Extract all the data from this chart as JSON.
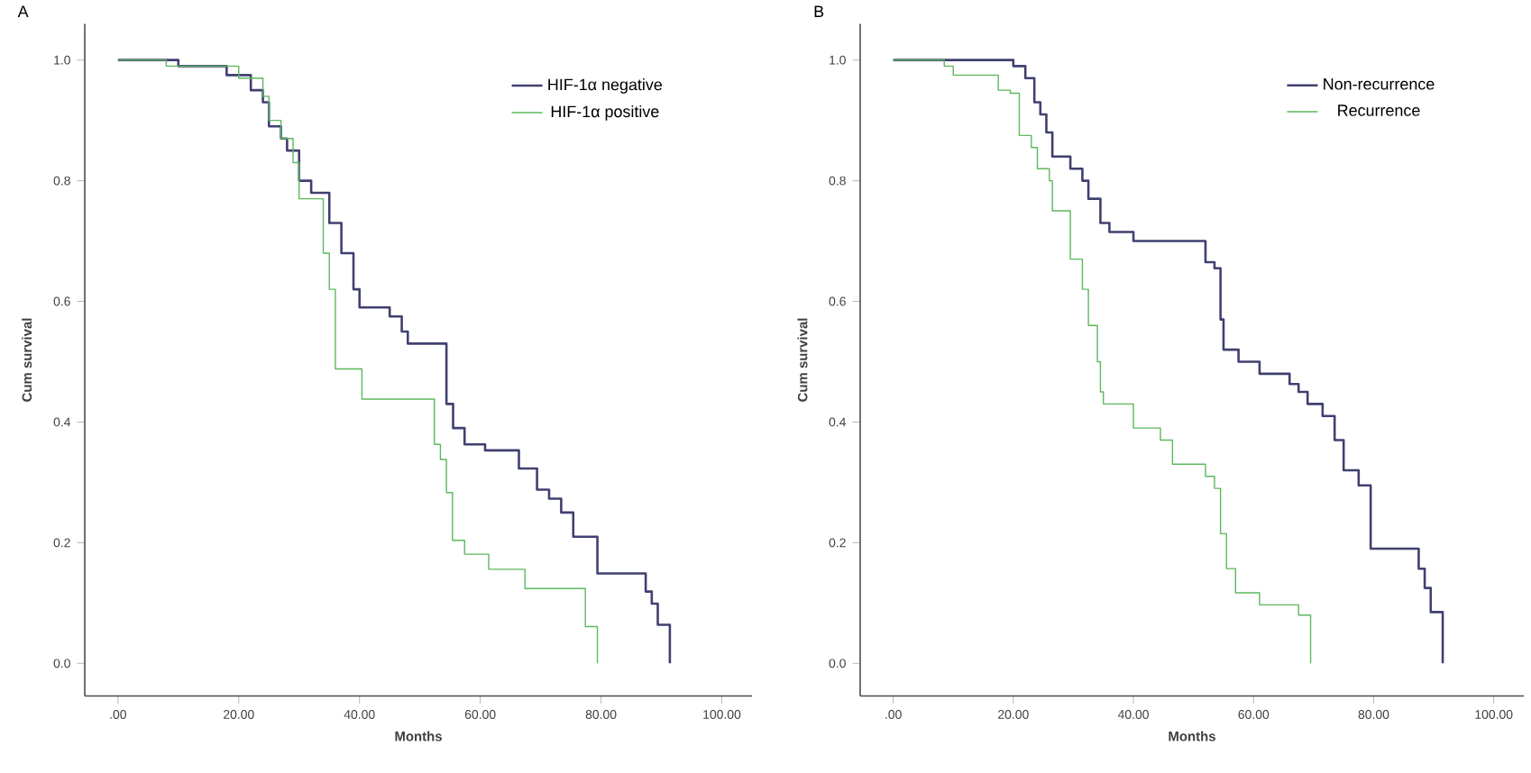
{
  "chart_data": [
    {
      "type": "step",
      "title": "A",
      "xlabel": "Months",
      "ylabel": "Cum survival",
      "legend": "top right",
      "xlim": [
        -5.5,
        105
      ],
      "ylim": [
        -0.054,
        1.06
      ],
      "xticks": [
        {
          "value": 0,
          "label": ".00"
        },
        {
          "value": 20,
          "label": "20.00"
        },
        {
          "value": 40,
          "label": "40.00"
        },
        {
          "value": 60,
          "label": "60.00"
        },
        {
          "value": 80,
          "label": "80.00"
        },
        {
          "value": 100,
          "label": "100.00"
        }
      ],
      "yticks": [
        {
          "value": 0,
          "label": "0.0"
        },
        {
          "value": 0.2,
          "label": "0.2"
        },
        {
          "value": 0.4,
          "label": "0.4"
        },
        {
          "value": 0.6,
          "label": "0.6"
        },
        {
          "value": 0.8,
          "label": "0.8"
        },
        {
          "value": 1,
          "label": "1.0"
        }
      ],
      "series": [
        {
          "name": "HIF-1α negative",
          "color": "#404070",
          "x": [
            0,
            10,
            18,
            22,
            24,
            25,
            27,
            28,
            30,
            32,
            35,
            37,
            39,
            40,
            45,
            47,
            48,
            54.4,
            55.5,
            57.4,
            60.8,
            66.4,
            69.4,
            71.4,
            73.4,
            75.4,
            79.4,
            87.4,
            88.4,
            89.4,
            91.4
          ],
          "values": [
            1,
            0.99,
            0.975,
            0.95,
            0.93,
            0.89,
            0.87,
            0.85,
            0.8,
            0.78,
            0.73,
            0.68,
            0.62,
            0.59,
            0.575,
            0.55,
            0.53,
            0.43,
            0.39,
            0.363,
            0.353,
            0.323,
            0.288,
            0.273,
            0.25,
            0.21,
            0.149,
            0.119,
            0.099,
            0.064,
            0
          ]
        },
        {
          "name": "HIF-1α positive",
          "color": "#5cb85c",
          "x": [
            0,
            8,
            20,
            24,
            25,
            27,
            29,
            30,
            34,
            35,
            36,
            40.4,
            52.4,
            53.4,
            54.4,
            55.4,
            57.4,
            61.4,
            67.4,
            77.4,
            79.4
          ],
          "values": [
            1,
            0.99,
            0.97,
            0.94,
            0.9,
            0.87,
            0.83,
            0.77,
            0.68,
            0.62,
            0.488,
            0.438,
            0.363,
            0.338,
            0.283,
            0.204,
            0.181,
            0.156,
            0.124,
            0.061,
            0
          ]
        }
      ]
    },
    {
      "type": "step",
      "title": "B",
      "xlabel": "Months",
      "ylabel": "Cum survival",
      "legend": "top right",
      "xlim": [
        -5.5,
        105
      ],
      "ylim": [
        -0.054,
        1.06
      ],
      "xticks": [
        {
          "value": 0,
          "label": ".00"
        },
        {
          "value": 20,
          "label": "20.00"
        },
        {
          "value": 40,
          "label": "40.00"
        },
        {
          "value": 60,
          "label": "60.00"
        },
        {
          "value": 80,
          "label": "80.00"
        },
        {
          "value": 100,
          "label": "100.00"
        }
      ],
      "yticks": [
        {
          "value": 0,
          "label": "0.0"
        },
        {
          "value": 0.2,
          "label": "0.2"
        },
        {
          "value": 0.4,
          "label": "0.4"
        },
        {
          "value": 0.6,
          "label": "0.6"
        },
        {
          "value": 0.8,
          "label": "0.8"
        },
        {
          "value": 1,
          "label": "1.0"
        }
      ],
      "series": [
        {
          "name": "Non-recurrence",
          "color": "#404070",
          "x": [
            0,
            20,
            22,
            23.5,
            24.5,
            25.5,
            26.5,
            29.5,
            31.5,
            32.5,
            34.5,
            36,
            40,
            52,
            53.5,
            54.5,
            55,
            57.5,
            61,
            66,
            67.5,
            69,
            71.5,
            73.5,
            75,
            77.5,
            79.5,
            87.5,
            88.5,
            89.5,
            91.5
          ],
          "values": [
            1,
            0.99,
            0.97,
            0.93,
            0.91,
            0.88,
            0.84,
            0.82,
            0.8,
            0.77,
            0.73,
            0.715,
            0.7,
            0.665,
            0.655,
            0.57,
            0.52,
            0.5,
            0.48,
            0.463,
            0.45,
            0.43,
            0.41,
            0.37,
            0.32,
            0.295,
            0.19,
            0.157,
            0.125,
            0.085,
            0
          ]
        },
        {
          "name": "Recurrence",
          "color": "#5cb85c",
          "x": [
            0,
            8.5,
            10,
            17.5,
            19.5,
            21,
            23,
            24,
            26,
            26.5,
            29.5,
            31.5,
            32.5,
            34,
            34.5,
            35,
            40,
            44.5,
            46.5,
            52,
            53.5,
            54.5,
            55.5,
            57,
            61,
            67.5,
            69.5
          ],
          "values": [
            1,
            0.99,
            0.975,
            0.95,
            0.945,
            0.875,
            0.855,
            0.82,
            0.8,
            0.75,
            0.67,
            0.62,
            0.56,
            0.5,
            0.45,
            0.43,
            0.39,
            0.37,
            0.33,
            0.31,
            0.29,
            0.215,
            0.157,
            0.117,
            0.097,
            0.08,
            0
          ]
        }
      ]
    }
  ]
}
